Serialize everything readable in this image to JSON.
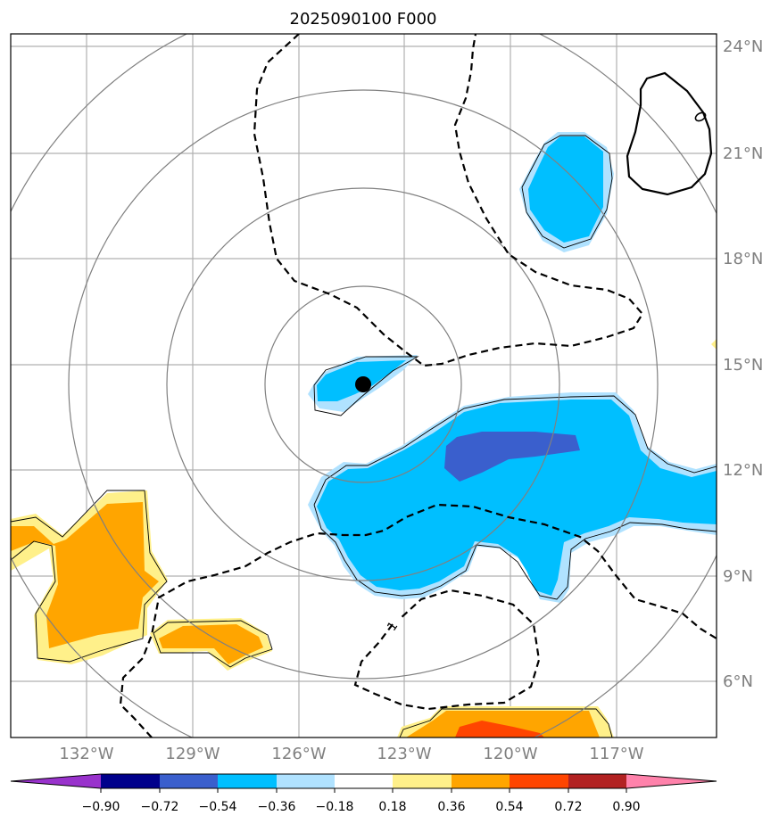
{
  "title": "2025090100 F000",
  "lat_labels": [
    "24°N",
    "21°N",
    "18°N",
    "15°N",
    "12°N",
    "9°N",
    "6°N"
  ],
  "lon_labels": [
    "132°W",
    "129°W",
    "126°W",
    "123°W",
    "120°W",
    "117°W"
  ],
  "contour_label": "1",
  "storm_center": {
    "lat": 14.5,
    "lon": "124.2°W"
  },
  "colorbar": {
    "colors": [
      "#9932cc",
      "#00008b",
      "#3a5fcd",
      "#00bfff",
      "#b0e2ff",
      "#ffffff",
      "#fff08a",
      "#ffa500",
      "#ff4500",
      "#b22222",
      "#ff82ab"
    ],
    "tick_labels": [
      "−0.90",
      "−0.72",
      "−0.54",
      "−0.36",
      "−0.18",
      "0.18",
      "0.36",
      "0.54",
      "0.72",
      "0.90"
    ]
  }
}
